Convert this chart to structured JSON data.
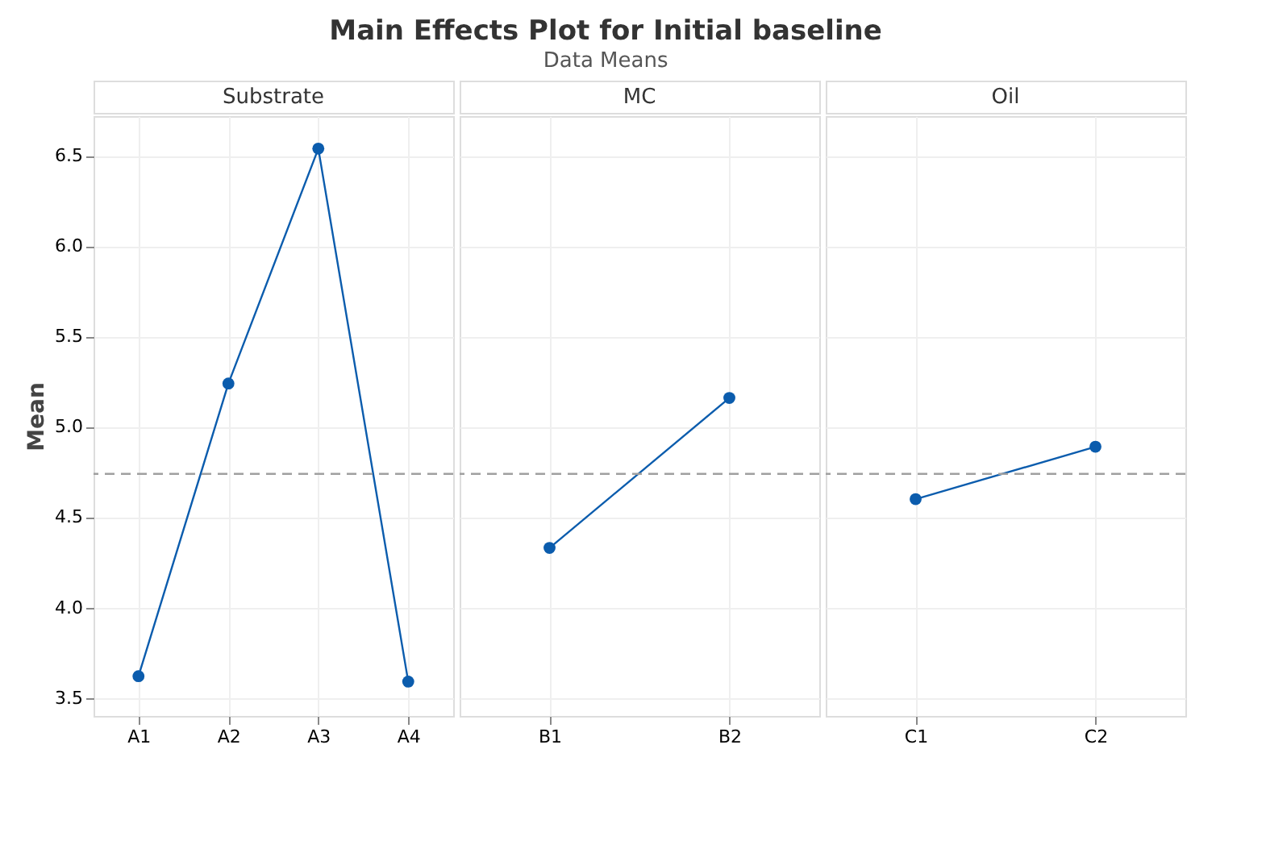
{
  "chart_data": [
    {
      "type": "line",
      "annotations": [
        "Substrate"
      ],
      "ylabel": "Mean",
      "categories": [
        "A1",
        "A2",
        "A3",
        "A4"
      ],
      "series": [
        {
          "color": "#0b5cad",
          "values": [
            3.62,
            5.24,
            6.54,
            3.59
          ]
        }
      ],
      "ylim": [
        3.4,
        6.72
      ],
      "yticks": [
        3.5,
        {
          "value": 4,
          "label": "4.0"
        },
        4.5,
        {
          "value": 5,
          "label": "5.0"
        },
        5.5,
        {
          "value": 6,
          "label": "6.0"
        },
        6.5
      ],
      "grid": true,
      "marker": "circle",
      "ref_lines": [
        {
          "axis": "y",
          "value": 4.74,
          "color": "#a0a0a0",
          "line_style": "dashed"
        }
      ]
    },
    {
      "type": "line",
      "title": "Main Effects Plot for Initial baseline",
      "subtitle": "Data Means",
      "annotations": [
        "MC"
      ],
      "categories": [
        "B1",
        "B2"
      ],
      "series": [
        {
          "color": "#0b5cad",
          "values": [
            4.33,
            5.16
          ]
        }
      ],
      "ylim": [
        3.4,
        6.72
      ],
      "yticks": [
        3.5,
        4,
        4.5,
        5,
        5.5,
        6,
        6.5
      ],
      "grid": true,
      "marker": "circle",
      "tick_labels": "x",
      "ref_lines": [
        {
          "axis": "y",
          "value": 4.74,
          "color": "#a0a0a0",
          "line_style": "dashed"
        }
      ]
    },
    {
      "type": "line",
      "annotations": [
        "Oil"
      ],
      "categories": [
        "C1",
        "C2"
      ],
      "series": [
        {
          "color": "#0b5cad",
          "values": [
            4.6,
            4.89
          ]
        }
      ],
      "ylim": [
        3.4,
        6.72
      ],
      "yticks": [
        3.5,
        4,
        4.5,
        5,
        5.5,
        6,
        6.5
      ],
      "grid": true,
      "marker": "circle",
      "tick_labels": "x",
      "ref_lines": [
        {
          "axis": "y",
          "value": 4.74,
          "color": "#a0a0a0",
          "line_style": "dashed"
        }
      ]
    }
  ]
}
